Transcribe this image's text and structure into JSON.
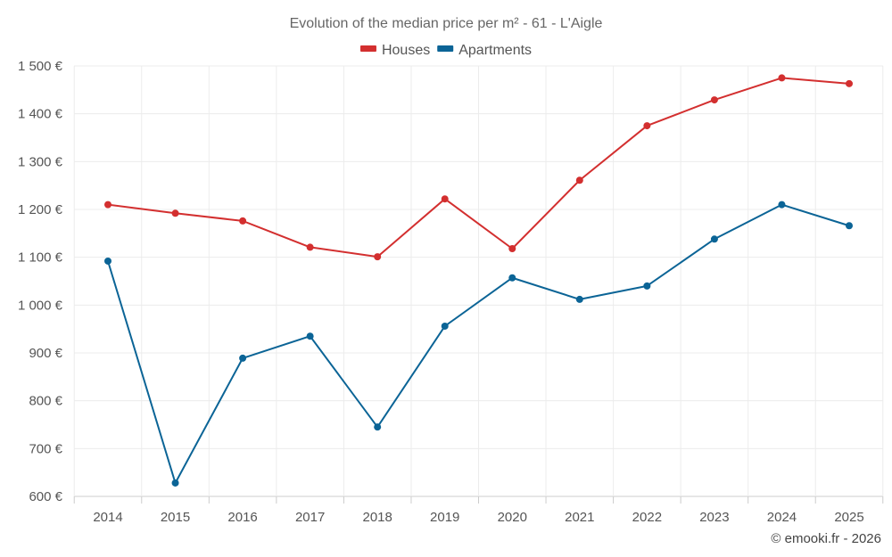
{
  "chart_data": {
    "type": "line",
    "title": "Evolution of the median price per m² - 61 - L'Aigle",
    "x": [
      "2014",
      "2015",
      "2016",
      "2017",
      "2018",
      "2019",
      "2020",
      "2021",
      "2022",
      "2023",
      "2024",
      "2025"
    ],
    "ylim": [
      600,
      1500
    ],
    "y_ticks": [
      600,
      700,
      800,
      900,
      1000,
      1100,
      1200,
      1300,
      1400,
      1500
    ],
    "y_tick_labels": [
      "600 €",
      "700 €",
      "800 €",
      "900 €",
      "1 000 €",
      "1 100 €",
      "1 200 €",
      "1 300 €",
      "1 400 €",
      "1 500 €"
    ],
    "grid": true,
    "legend_position": "top-center",
    "series": [
      {
        "name": "Houses",
        "color": "#d32f2f",
        "values": [
          1210,
          1192,
          1176,
          1121,
          1101,
          1222,
          1118,
          1261,
          1375,
          1429,
          1475,
          1463
        ]
      },
      {
        "name": "Apartments",
        "color": "#0b6496",
        "values": [
          1092,
          628,
          889,
          935,
          745,
          956,
          1057,
          1012,
          1040,
          1138,
          1210,
          1166
        ]
      }
    ]
  },
  "credit": "© emooki.fr - 2026"
}
